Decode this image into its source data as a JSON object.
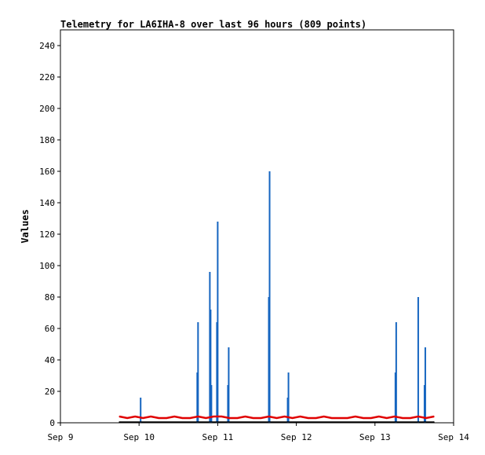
{
  "chart_data": {
    "type": "line",
    "title": "Telemetry for LA6IHA-8 over last 96 hours (809 points)",
    "xlabel": "",
    "ylabel": "Values",
    "xlim": [
      "Sep 9",
      "Sep 14"
    ],
    "ylim": [
      0,
      250
    ],
    "x_ticks": [
      "Sep 9",
      "Sep 10",
      "Sep 11",
      "Sep 12",
      "Sep 13",
      "Sep 14"
    ],
    "y_ticks": [
      0,
      20,
      40,
      60,
      80,
      100,
      120,
      140,
      160,
      180,
      200,
      220,
      240
    ],
    "grid": false,
    "colors": {
      "spikes": "#1565c0",
      "baseline": "#e00000",
      "floor": "#000000"
    },
    "series": [
      {
        "style": "vertical-bars",
        "color": "#1565c0",
        "x_day_offset": [
          1.02,
          1.74,
          1.75,
          1.9,
          1.91,
          1.92,
          1.99,
          2.0,
          2.13,
          2.14,
          2.65,
          2.66,
          2.89,
          2.9,
          3.0,
          4.26,
          4.27,
          4.55,
          4.63,
          4.64
        ],
        "values": [
          16,
          32,
          64,
          96,
          72,
          24,
          64,
          128,
          24,
          48,
          80,
          160,
          16,
          32,
          0,
          32,
          64,
          80,
          24,
          48
        ]
      },
      {
        "style": "dense-line",
        "color": "#e00000",
        "x_day_offset": [
          0.75,
          0.85,
          0.95,
          1.05,
          1.15,
          1.25,
          1.35,
          1.45,
          1.55,
          1.65,
          1.75,
          1.85,
          1.95,
          2.05,
          2.15,
          2.25,
          2.35,
          2.45,
          2.55,
          2.65,
          2.75,
          2.85,
          2.95,
          3.05,
          3.15,
          3.25,
          3.35,
          3.45,
          3.55,
          3.65,
          3.75,
          3.85,
          3.95,
          4.05,
          4.15,
          4.25,
          4.35,
          4.45,
          4.55,
          4.65,
          4.75
        ],
        "values": [
          4,
          3,
          4,
          3,
          4,
          3,
          3,
          4,
          3,
          3,
          4,
          3,
          4,
          4,
          3,
          3,
          4,
          3,
          3,
          4,
          3,
          4,
          3,
          4,
          3,
          3,
          4,
          3,
          3,
          3,
          4,
          3,
          3,
          4,
          3,
          4,
          3,
          3,
          4,
          3,
          4
        ]
      },
      {
        "style": "dense-line",
        "color": "#000000",
        "x_day_offset": [
          0.75,
          4.75
        ],
        "values": [
          0.5,
          0.5
        ]
      }
    ]
  }
}
